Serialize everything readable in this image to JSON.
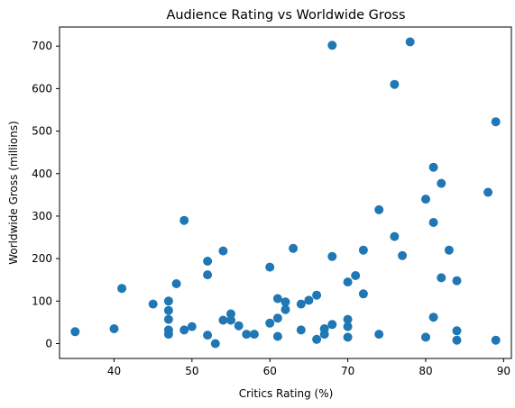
{
  "chart_data": {
    "type": "scatter",
    "title": "Audience Rating vs Worldwide Gross",
    "xlabel": "Critics Rating (%)",
    "ylabel": "Worldwide Gross (millions)",
    "xlim": [
      33,
      91
    ],
    "ylim": [
      -35,
      745
    ],
    "xticks": [
      40,
      50,
      60,
      70,
      80,
      90
    ],
    "yticks": [
      0,
      100,
      200,
      300,
      400,
      500,
      600,
      700
    ],
    "grid": false,
    "marker_color": "#1f77b4",
    "points": [
      {
        "x": 35,
        "y": 28
      },
      {
        "x": 40,
        "y": 35
      },
      {
        "x": 41,
        "y": 130
      },
      {
        "x": 45,
        "y": 93
      },
      {
        "x": 47,
        "y": 100
      },
      {
        "x": 47,
        "y": 78
      },
      {
        "x": 47,
        "y": 57
      },
      {
        "x": 47,
        "y": 32
      },
      {
        "x": 47,
        "y": 22
      },
      {
        "x": 48,
        "y": 141
      },
      {
        "x": 49,
        "y": 290
      },
      {
        "x": 49,
        "y": 32
      },
      {
        "x": 50,
        "y": 40
      },
      {
        "x": 52,
        "y": 194
      },
      {
        "x": 52,
        "y": 162
      },
      {
        "x": 52,
        "y": 20
      },
      {
        "x": 53,
        "y": 0
      },
      {
        "x": 54,
        "y": 218
      },
      {
        "x": 54,
        "y": 55
      },
      {
        "x": 55,
        "y": 70
      },
      {
        "x": 55,
        "y": 55
      },
      {
        "x": 56,
        "y": 42
      },
      {
        "x": 57,
        "y": 22
      },
      {
        "x": 58,
        "y": 22
      },
      {
        "x": 60,
        "y": 180
      },
      {
        "x": 60,
        "y": 48
      },
      {
        "x": 61,
        "y": 106
      },
      {
        "x": 61,
        "y": 60
      },
      {
        "x": 61,
        "y": 17
      },
      {
        "x": 62,
        "y": 98
      },
      {
        "x": 62,
        "y": 80
      },
      {
        "x": 63,
        "y": 224
      },
      {
        "x": 64,
        "y": 93
      },
      {
        "x": 64,
        "y": 32
      },
      {
        "x": 65,
        "y": 102
      },
      {
        "x": 66,
        "y": 114
      },
      {
        "x": 66,
        "y": 10
      },
      {
        "x": 67,
        "y": 35
      },
      {
        "x": 67,
        "y": 22
      },
      {
        "x": 68,
        "y": 702
      },
      {
        "x": 68,
        "y": 205
      },
      {
        "x": 68,
        "y": 45
      },
      {
        "x": 70,
        "y": 145
      },
      {
        "x": 70,
        "y": 57
      },
      {
        "x": 70,
        "y": 40
      },
      {
        "x": 70,
        "y": 15
      },
      {
        "x": 71,
        "y": 160
      },
      {
        "x": 72,
        "y": 220
      },
      {
        "x": 72,
        "y": 117
      },
      {
        "x": 74,
        "y": 315
      },
      {
        "x": 74,
        "y": 22
      },
      {
        "x": 76,
        "y": 610
      },
      {
        "x": 76,
        "y": 252
      },
      {
        "x": 77,
        "y": 207
      },
      {
        "x": 78,
        "y": 710
      },
      {
        "x": 80,
        "y": 340
      },
      {
        "x": 80,
        "y": 15
      },
      {
        "x": 81,
        "y": 415
      },
      {
        "x": 81,
        "y": 285
      },
      {
        "x": 81,
        "y": 62
      },
      {
        "x": 82,
        "y": 377
      },
      {
        "x": 82,
        "y": 155
      },
      {
        "x": 83,
        "y": 220
      },
      {
        "x": 84,
        "y": 148
      },
      {
        "x": 84,
        "y": 30
      },
      {
        "x": 84,
        "y": 8
      },
      {
        "x": 88,
        "y": 356
      },
      {
        "x": 89,
        "y": 522
      },
      {
        "x": 89,
        "y": 8
      }
    ]
  }
}
